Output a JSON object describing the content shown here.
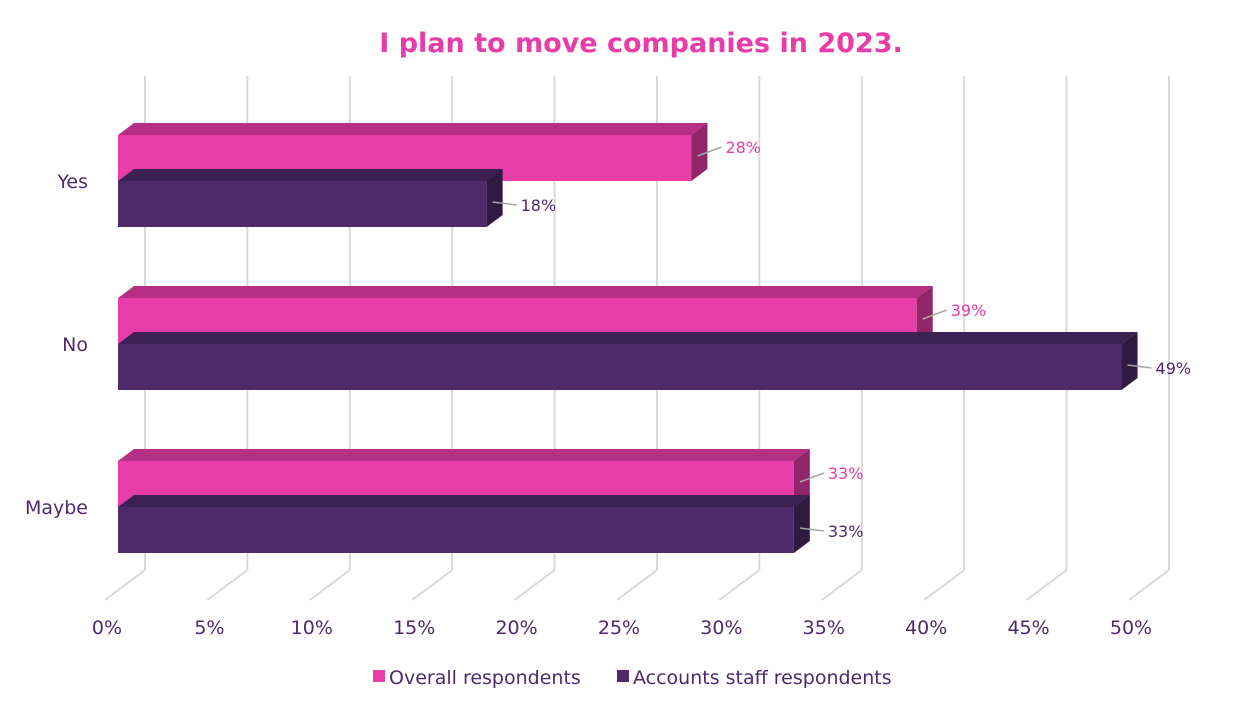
{
  "chart_data": {
    "type": "bar",
    "orientation": "horizontal",
    "style": "3d-clustered",
    "title": "I plan to move companies in 2023.",
    "categories": [
      "Yes",
      "No",
      "Maybe"
    ],
    "series": [
      {
        "name": "Overall respondents",
        "values": [
          28,
          39,
          33
        ],
        "color": "#E83CA9",
        "labels": [
          "28%",
          "39%",
          "33%"
        ]
      },
      {
        "name": "Accounts staff respondents",
        "values": [
          18,
          49,
          33
        ],
        "color": "#4E2A6B",
        "labels": [
          "18%",
          "49%",
          "33%"
        ]
      }
    ],
    "x_ticks": [
      "0%",
      "5%",
      "10%",
      "15%",
      "20%",
      "25%",
      "30%",
      "35%",
      "40%",
      "45%",
      "50%"
    ],
    "xlim": [
      0,
      50
    ],
    "grid": true,
    "legend": "bottom",
    "colors": {
      "title": "#E83CA9",
      "axis_text": "#4E2A6B",
      "grid": "#D9D9D9"
    }
  }
}
